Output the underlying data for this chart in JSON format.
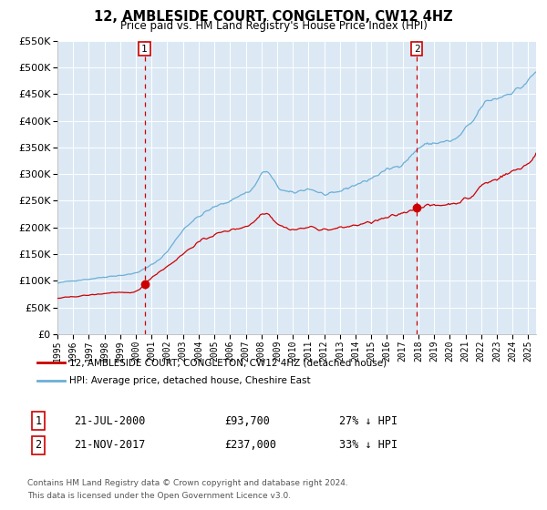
{
  "title": "12, AMBLESIDE COURT, CONGLETON, CW12 4HZ",
  "subtitle": "Price paid vs. HM Land Registry's House Price Index (HPI)",
  "ylim": [
    0,
    550000
  ],
  "yticks": [
    0,
    50000,
    100000,
    150000,
    200000,
    250000,
    300000,
    350000,
    400000,
    450000,
    500000,
    550000
  ],
  "xlim_start": 1995.0,
  "xlim_end": 2025.5,
  "xticks": [
    1995,
    1996,
    1997,
    1998,
    1999,
    2000,
    2001,
    2002,
    2003,
    2004,
    2005,
    2006,
    2007,
    2008,
    2009,
    2010,
    2011,
    2012,
    2013,
    2014,
    2015,
    2016,
    2017,
    2018,
    2019,
    2020,
    2021,
    2022,
    2023,
    2024,
    2025
  ],
  "hpi_color": "#6baed6",
  "price_color": "#cc0000",
  "marker_color": "#cc0000",
  "vline_color": "#cc0000",
  "bg_color": "#dce9f5",
  "grid_color": "#ffffff",
  "sale1_x": 2000.55,
  "sale1_y": 93700,
  "sale2_x": 2017.89,
  "sale2_y": 237000,
  "legend_label_price": "12, AMBLESIDE COURT, CONGLETON, CW12 4HZ (detached house)",
  "legend_label_hpi": "HPI: Average price, detached house, Cheshire East",
  "table_row1_label": "1",
  "table_row1_date": "21-JUL-2000",
  "table_row1_price": "£93,700",
  "table_row1_hpi": "27% ↓ HPI",
  "table_row2_label": "2",
  "table_row2_date": "21-NOV-2017",
  "table_row2_price": "£237,000",
  "table_row2_hpi": "33% ↓ HPI",
  "footnote1": "Contains HM Land Registry data © Crown copyright and database right 2024.",
  "footnote2": "This data is licensed under the Open Government Licence v3.0."
}
